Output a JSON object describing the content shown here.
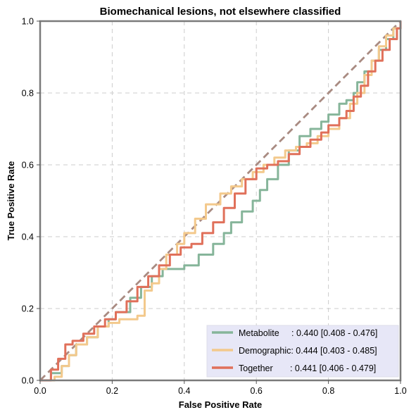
{
  "chart_data": {
    "type": "line",
    "title": "Biomechanical lesions, not elsewhere classified",
    "xlabel": "False Positive Rate",
    "ylabel": "True Positive Rate",
    "xlim": [
      0,
      1
    ],
    "ylim": [
      0,
      1
    ],
    "x_ticks": [
      "0.0",
      "0.2",
      "0.4",
      "0.6",
      "0.8",
      "1.0"
    ],
    "y_ticks": [
      "0.0",
      "0.2",
      "0.4",
      "0.6",
      "0.8",
      "1.0"
    ],
    "grid": true,
    "legend_position": "bottom-right",
    "reference_line": {
      "x": [
        0,
        1
      ],
      "y": [
        0,
        1
      ],
      "color": "#a98b82",
      "style": "dashed"
    },
    "series": [
      {
        "name": "Metabolite",
        "legend_label": "Metabolite     : 0.440 [0.408 - 0.476]",
        "color": "#86b59a",
        "x": [
          0,
          0.03,
          0.06,
          0.08,
          0.1,
          0.13,
          0.16,
          0.19,
          0.21,
          0.25,
          0.28,
          0.31,
          0.34,
          0.37,
          0.4,
          0.44,
          0.48,
          0.51,
          0.53,
          0.56,
          0.59,
          0.61,
          0.63,
          0.66,
          0.69,
          0.72,
          0.75,
          0.78,
          0.8,
          0.83,
          0.85,
          0.87,
          0.88,
          0.9,
          0.92,
          0.94,
          0.96,
          0.98,
          1.0
        ],
        "y": [
          0,
          0.02,
          0.04,
          0.07,
          0.1,
          0.12,
          0.15,
          0.17,
          0.19,
          0.23,
          0.26,
          0.29,
          0.31,
          0.31,
          0.32,
          0.35,
          0.38,
          0.41,
          0.44,
          0.47,
          0.5,
          0.53,
          0.56,
          0.6,
          0.64,
          0.68,
          0.7,
          0.72,
          0.74,
          0.77,
          0.78,
          0.8,
          0.83,
          0.86,
          0.89,
          0.92,
          0.95,
          0.98,
          1.0
        ]
      },
      {
        "name": "Demographic",
        "legend_label": "Demographic: 0.444 [0.403 - 0.485]",
        "color": "#f3c98c",
        "x": [
          0,
          0.04,
          0.06,
          0.08,
          0.1,
          0.13,
          0.16,
          0.19,
          0.22,
          0.25,
          0.27,
          0.29,
          0.31,
          0.33,
          0.35,
          0.38,
          0.4,
          0.43,
          0.46,
          0.5,
          0.53,
          0.56,
          0.59,
          0.62,
          0.65,
          0.68,
          0.71,
          0.74,
          0.77,
          0.8,
          0.83,
          0.86,
          0.88,
          0.9,
          0.92,
          0.94,
          0.96,
          0.98,
          1.0
        ],
        "y": [
          0,
          0.01,
          0.04,
          0.07,
          0.1,
          0.12,
          0.15,
          0.16,
          0.17,
          0.17,
          0.18,
          0.25,
          0.27,
          0.31,
          0.35,
          0.38,
          0.41,
          0.45,
          0.49,
          0.52,
          0.54,
          0.56,
          0.58,
          0.6,
          0.62,
          0.64,
          0.65,
          0.66,
          0.68,
          0.7,
          0.73,
          0.77,
          0.8,
          0.85,
          0.89,
          0.93,
          0.96,
          0.98,
          1.0
        ]
      },
      {
        "name": "Together",
        "legend_label": "Together       : 0.441 [0.406 - 0.479]",
        "color": "#e0705a",
        "x": [
          0,
          0.03,
          0.05,
          0.07,
          0.09,
          0.12,
          0.15,
          0.18,
          0.21,
          0.24,
          0.27,
          0.3,
          0.33,
          0.36,
          0.39,
          0.42,
          0.45,
          0.48,
          0.51,
          0.54,
          0.57,
          0.6,
          0.63,
          0.66,
          0.69,
          0.72,
          0.75,
          0.78,
          0.8,
          0.83,
          0.85,
          0.87,
          0.89,
          0.91,
          0.93,
          0.95,
          0.97,
          0.99,
          1.0
        ],
        "y": [
          0,
          0.03,
          0.06,
          0.1,
          0.11,
          0.13,
          0.15,
          0.17,
          0.19,
          0.22,
          0.26,
          0.29,
          0.32,
          0.35,
          0.37,
          0.38,
          0.41,
          0.44,
          0.48,
          0.52,
          0.56,
          0.59,
          0.6,
          0.61,
          0.63,
          0.65,
          0.67,
          0.69,
          0.71,
          0.73,
          0.75,
          0.79,
          0.82,
          0.86,
          0.89,
          0.92,
          0.95,
          0.98,
          1.0
        ]
      }
    ]
  }
}
